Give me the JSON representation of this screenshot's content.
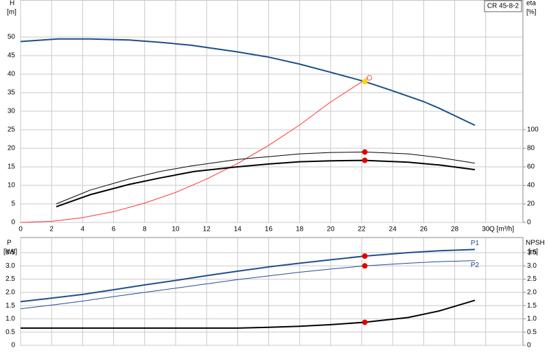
{
  "chart_data": [
    {
      "type": "line",
      "title": "CR 45-8-2",
      "ylabel": "H",
      "yunit": "[m]",
      "y2label": "eta",
      "y2unit": "[%]",
      "xlabel": "Q [m³/h]",
      "xlim": [
        0,
        32.4
      ],
      "xticks": [
        0,
        2,
        4,
        6,
        8,
        10,
        12,
        14,
        16,
        18,
        20,
        22,
        24,
        26,
        28,
        30
      ],
      "show_xtick_labels": true,
      "ylim": [
        0,
        60
      ],
      "yticks": [
        0,
        5,
        10,
        15,
        20,
        25,
        30,
        35,
        40,
        45,
        50
      ],
      "y2lim": [
        0,
        240
      ],
      "y2ticks": [
        0,
        20,
        40,
        60,
        80,
        100
      ],
      "grid": true,
      "series": [
        {
          "color": "#1a4f8a",
          "width": 2,
          "x": [
            0,
            2.4,
            4.5,
            7,
            9,
            11,
            12,
            14,
            16,
            18,
            20,
            22.2,
            24,
            26,
            27,
            29.3
          ],
          "values": [
            48.8,
            49.5,
            49.5,
            49.2,
            48.6,
            47.8,
            47.2,
            46,
            44.6,
            42.7,
            40.5,
            38,
            35.5,
            32.6,
            30.8,
            26.2
          ]
        },
        {
          "color": "#ff3030",
          "width": 1,
          "x": [
            0,
            2,
            4,
            6,
            8,
            10,
            12,
            14,
            16,
            18,
            20,
            22.4
          ],
          "values": [
            0,
            0.3,
            1.3,
            2.9,
            5.2,
            8.1,
            11.7,
            15.9,
            20.8,
            26.3,
            32.5,
            39
          ]
        },
        {
          "color": "#000000",
          "width": 1,
          "axis": "y2",
          "x": [
            2.3,
            4.5,
            7,
            9,
            11,
            14,
            16,
            18,
            20,
            22.2,
            25,
            27,
            29.3
          ],
          "values": [
            20,
            35,
            47,
            55,
            61,
            68,
            71,
            74,
            75.5,
            76,
            74,
            70,
            64
          ]
        },
        {
          "color": "#000000",
          "width": 2,
          "axis": "y2",
          "x": [
            2.3,
            4.5,
            7,
            9,
            11.2,
            14,
            16,
            18,
            20,
            22.2,
            25,
            27,
            29.3
          ],
          "values": [
            17,
            30,
            41,
            48,
            55,
            60,
            63,
            65.5,
            66.5,
            67,
            65,
            62,
            57
          ]
        },
        {
          "marker": true,
          "hollow": true,
          "color": "#ff5050",
          "x": [
            22.5
          ],
          "values": [
            39
          ]
        },
        {
          "marker": true,
          "color": "#ffd700",
          "x": [
            22.2
          ],
          "values": [
            38
          ]
        },
        {
          "marker": true,
          "color": "#e00000",
          "axis": "y2",
          "x": [
            22.2,
            22.2
          ],
          "values": [
            76,
            67
          ]
        }
      ]
    },
    {
      "type": "line",
      "ylabel": "P",
      "yunit": "[kW]",
      "y2label": "NPSH",
      "y2unit": "[m]",
      "xlim": [
        0,
        32.4
      ],
      "xticks": [
        0,
        2,
        4,
        6,
        8,
        10,
        12,
        14,
        16,
        18,
        20,
        22,
        24,
        26,
        28,
        30
      ],
      "show_xtick_labels": false,
      "ylim": [
        0,
        4.07
      ],
      "yticks": [
        0,
        0.5,
        {
          "value": 1,
          "label": "1.0"
        },
        1.5,
        {
          "value": 2,
          "label": "2.0"
        },
        2.5,
        {
          "value": 3,
          "label": "3.0"
        },
        3.5
      ],
      "y2lim": [
        0,
        4.07
      ],
      "y2ticks": [
        0,
        0.5,
        {
          "value": 1,
          "label": "1.0"
        },
        1.5,
        {
          "value": 2,
          "label": "2.0"
        },
        2.5,
        {
          "value": 3,
          "label": "3.0"
        },
        3.5
      ],
      "grid": true,
      "series": [
        {
          "name": "P1",
          "color": "#1f4e8c",
          "width": 2,
          "x": [
            0,
            2,
            4,
            6,
            8,
            10,
            12,
            14,
            16,
            18,
            20,
            22.2,
            25,
            27,
            29.3
          ],
          "values": [
            1.65,
            1.78,
            1.92,
            2.1,
            2.28,
            2.45,
            2.63,
            2.8,
            2.96,
            3.1,
            3.23,
            3.37,
            3.5,
            3.57,
            3.62
          ]
        },
        {
          "name": "P2",
          "color": "#1f4e8c",
          "width": 1,
          "x": [
            0,
            2,
            4,
            6,
            8,
            10,
            12,
            14,
            16,
            18,
            20,
            22.2,
            25,
            27,
            29.3
          ],
          "values": [
            1.38,
            1.52,
            1.67,
            1.84,
            2.0,
            2.16,
            2.32,
            2.48,
            2.62,
            2.76,
            2.88,
            3.0,
            3.1,
            3.16,
            3.2
          ]
        },
        {
          "color": "#000000",
          "width": 2,
          "axis": "y2",
          "x": [
            0,
            4,
            8,
            11.2,
            14,
            16,
            18,
            20,
            22.2,
            25,
            27,
            29.3
          ],
          "values": [
            0.65,
            0.65,
            0.65,
            0.65,
            0.65,
            0.68,
            0.72,
            0.78,
            0.87,
            1.05,
            1.3,
            1.7
          ]
        },
        {
          "marker": true,
          "color": "#e00000",
          "x": [
            22.2,
            22.2
          ],
          "values": [
            3.37,
            3.0
          ]
        },
        {
          "marker": true,
          "color": "#e00000",
          "axis": "y2",
          "x": [
            22.2
          ],
          "values": [
            0.87
          ]
        }
      ]
    }
  ]
}
